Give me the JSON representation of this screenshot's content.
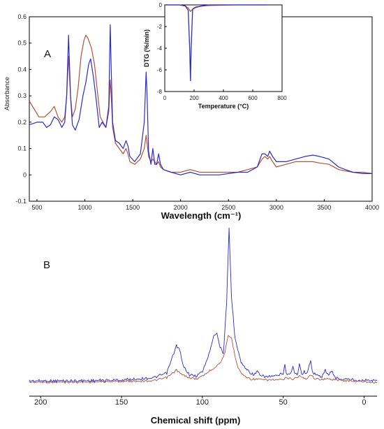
{
  "colors": {
    "blue": "#2b2bd0",
    "red": "#b5523a"
  },
  "panels": {
    "A": "A",
    "B": "B"
  },
  "chart_data": [
    {
      "type": "line",
      "panel": "A",
      "xlabel": "Wavelength (cm⁻¹)",
      "ylabel": "Absorbance",
      "xlim": [
        420,
        4000
      ],
      "ylim": [
        -0.1,
        0.6
      ],
      "xticks": [
        500,
        1000,
        1500,
        2000,
        2500,
        3000,
        3500,
        4000
      ],
      "yticks": [
        -0.1,
        0,
        0.1,
        0.2,
        0.3,
        0.4,
        0.5,
        0.6
      ],
      "grid": false,
      "series": [
        {
          "color": "#2b2bd0",
          "x": [
            420,
            500,
            560,
            600,
            640,
            680,
            720,
            760,
            790,
            810,
            830,
            850,
            870,
            900,
            940,
            980,
            1010,
            1040,
            1060,
            1090,
            1120,
            1150,
            1180,
            1220,
            1250,
            1265,
            1275,
            1290,
            1320,
            1360,
            1400,
            1430,
            1450,
            1470,
            1520,
            1580,
            1620,
            1640,
            1650,
            1665,
            1690,
            1710,
            1730,
            1750,
            1770,
            1790,
            1820,
            1900,
            2000,
            2100,
            2200,
            2400,
            2600,
            2700,
            2800,
            2850,
            2880,
            2910,
            2930,
            2960,
            3000,
            3100,
            3200,
            3300,
            3380,
            3450,
            3550,
            3650,
            3720,
            3800,
            3900,
            4000
          ],
          "y": [
            0.19,
            0.2,
            0.2,
            0.18,
            0.19,
            0.22,
            0.21,
            0.18,
            0.2,
            0.3,
            0.53,
            0.3,
            0.19,
            0.17,
            0.21,
            0.3,
            0.35,
            0.42,
            0.44,
            0.37,
            0.28,
            0.18,
            0.2,
            0.18,
            0.26,
            0.57,
            0.4,
            0.2,
            0.13,
            0.12,
            0.1,
            0.13,
            0.11,
            0.07,
            0.05,
            0.08,
            0.2,
            0.39,
            0.3,
            0.09,
            0.04,
            0.1,
            0.04,
            0.04,
            0.08,
            0.04,
            0.02,
            0.01,
            0.0,
            0.01,
            0.0,
            0.0,
            0.01,
            0.01,
            0.03,
            0.08,
            0.08,
            0.07,
            0.09,
            0.07,
            0.05,
            0.05,
            0.06,
            0.07,
            0.075,
            0.07,
            0.06,
            0.03,
            0.02,
            0.01,
            0.005,
            0.005
          ]
        },
        {
          "color": "#b5523a",
          "x": [
            420,
            470,
            520,
            580,
            640,
            680,
            720,
            760,
            790,
            810,
            830,
            850,
            870,
            900,
            930,
            960,
            990,
            1010,
            1030,
            1050,
            1070,
            1100,
            1130,
            1160,
            1190,
            1220,
            1250,
            1265,
            1275,
            1290,
            1320,
            1360,
            1400,
            1430,
            1450,
            1470,
            1520,
            1580,
            1620,
            1640,
            1650,
            1665,
            1690,
            1710,
            1730,
            1750,
            1770,
            1790,
            1820,
            1900,
            2000,
            2100,
            2200,
            2400,
            2600,
            2700,
            2800,
            2850,
            2880,
            2910,
            2930,
            2960,
            3000,
            3100,
            3200,
            3300,
            3380,
            3450,
            3550,
            3650,
            3720,
            3800,
            3900,
            4000
          ],
          "y": [
            0.28,
            0.25,
            0.22,
            0.22,
            0.24,
            0.26,
            0.22,
            0.2,
            0.22,
            0.3,
            0.45,
            0.3,
            0.22,
            0.25,
            0.33,
            0.45,
            0.51,
            0.53,
            0.52,
            0.5,
            0.48,
            0.42,
            0.32,
            0.22,
            0.2,
            0.18,
            0.24,
            0.36,
            0.3,
            0.18,
            0.12,
            0.1,
            0.08,
            0.1,
            0.08,
            0.05,
            0.04,
            0.06,
            0.1,
            0.15,
            0.12,
            0.07,
            0.05,
            0.06,
            0.05,
            0.04,
            0.05,
            0.03,
            0.02,
            0.01,
            0.01,
            0.02,
            0.01,
            0.01,
            0.01,
            0.02,
            0.03,
            0.06,
            0.07,
            0.06,
            0.07,
            0.05,
            0.03,
            0.04,
            0.05,
            0.05,
            0.05,
            0.045,
            0.04,
            0.02,
            0.015,
            0.01,
            0.01,
            0.005
          ]
        }
      ]
    },
    {
      "type": "line",
      "panel": "A-inset",
      "xlabel": "Temperature (°C)",
      "ylabel": "DTG (%/min)",
      "xlim": [
        0,
        800
      ],
      "ylim": [
        -8,
        0
      ],
      "xticks": [
        0,
        200,
        400,
        600,
        800
      ],
      "yticks": [
        0,
        -2,
        -4,
        -6,
        -8
      ],
      "grid": false,
      "series": [
        {
          "color": "#2b2bd0",
          "x": [
            0,
            100,
            140,
            160,
            170,
            175,
            180,
            190,
            210,
            260,
            300,
            400,
            500,
            600,
            700
          ],
          "y": [
            0,
            0,
            -0.1,
            -0.5,
            -4,
            -7.0,
            -4,
            -0.4,
            -0.2,
            -0.1,
            0,
            0,
            0,
            0,
            0
          ]
        },
        {
          "color": "#b5523a",
          "x": [
            0,
            100,
            140,
            160,
            175,
            190,
            210,
            250,
            300,
            400,
            500,
            600,
            700
          ],
          "y": [
            0,
            0,
            -0.1,
            -0.3,
            -0.6,
            -0.4,
            -0.25,
            -0.1,
            -0.05,
            -0.02,
            0,
            0,
            0
          ]
        }
      ]
    },
    {
      "type": "line",
      "panel": "B",
      "xlabel": "Chemical shift (ppm)",
      "ylabel": "",
      "xlim": [
        207,
        -8
      ],
      "xticks": [
        200,
        150,
        100,
        50,
        0
      ],
      "grid": false,
      "series": [
        {
          "color": "#2b2bd0",
          "x": [
            207,
            180,
            150,
            130,
            122,
            118,
            116,
            114,
            112,
            108,
            104,
            100,
            96,
            93,
            91,
            89,
            87,
            85,
            83.5,
            82,
            80,
            78,
            76,
            74,
            72,
            70,
            68,
            66,
            64,
            62,
            60,
            58,
            56,
            54,
            52,
            50,
            49,
            48,
            46,
            44,
            43,
            41,
            40,
            38.5,
            37,
            35,
            33,
            32,
            30,
            28,
            26,
            24,
            22,
            20,
            18,
            14,
            10,
            5,
            0,
            -8
          ],
          "y": [
            0,
            0,
            0.005,
            0.02,
            0.05,
            0.17,
            0.23,
            0.2,
            0.1,
            0.04,
            0.03,
            0.06,
            0.17,
            0.3,
            0.31,
            0.22,
            0.18,
            0.5,
            1.0,
            0.55,
            0.3,
            0.2,
            0.12,
            0.09,
            0.07,
            0.05,
            0.04,
            0.06,
            0.03,
            0.03,
            0.025,
            0.03,
            0.03,
            0.03,
            0.04,
            0.05,
            0.1,
            0.05,
            0.04,
            0.09,
            0.05,
            0.04,
            0.12,
            0.04,
            0.06,
            0.05,
            0.14,
            0.06,
            0.04,
            0.03,
            0.03,
            0.07,
            0.03,
            0.07,
            0.02,
            0.01,
            0.01,
            0.005,
            0.005,
            0
          ]
        },
        {
          "color": "#b5523a",
          "x": [
            207,
            180,
            150,
            130,
            122,
            118,
            116,
            113,
            108,
            104,
            100,
            96,
            92,
            90,
            88,
            86,
            84,
            82,
            80,
            78,
            76,
            74,
            72,
            70,
            66,
            62,
            58,
            54,
            50,
            48,
            44,
            40,
            36,
            33,
            30,
            25,
            20,
            14,
            10,
            5,
            0,
            -8
          ],
          "y": [
            0,
            0,
            0.005,
            0.01,
            0.03,
            0.06,
            0.08,
            0.05,
            0.03,
            0.02,
            0.04,
            0.07,
            0.1,
            0.12,
            0.14,
            0.2,
            0.3,
            0.29,
            0.18,
            0.1,
            0.06,
            0.04,
            0.03,
            0.02,
            0.02,
            0.015,
            0.015,
            0.015,
            0.015,
            0.03,
            0.02,
            0.04,
            0.02,
            0.05,
            0.02,
            0.02,
            0.02,
            0.01,
            0.01,
            0.005,
            0.003,
            0
          ]
        }
      ]
    }
  ]
}
